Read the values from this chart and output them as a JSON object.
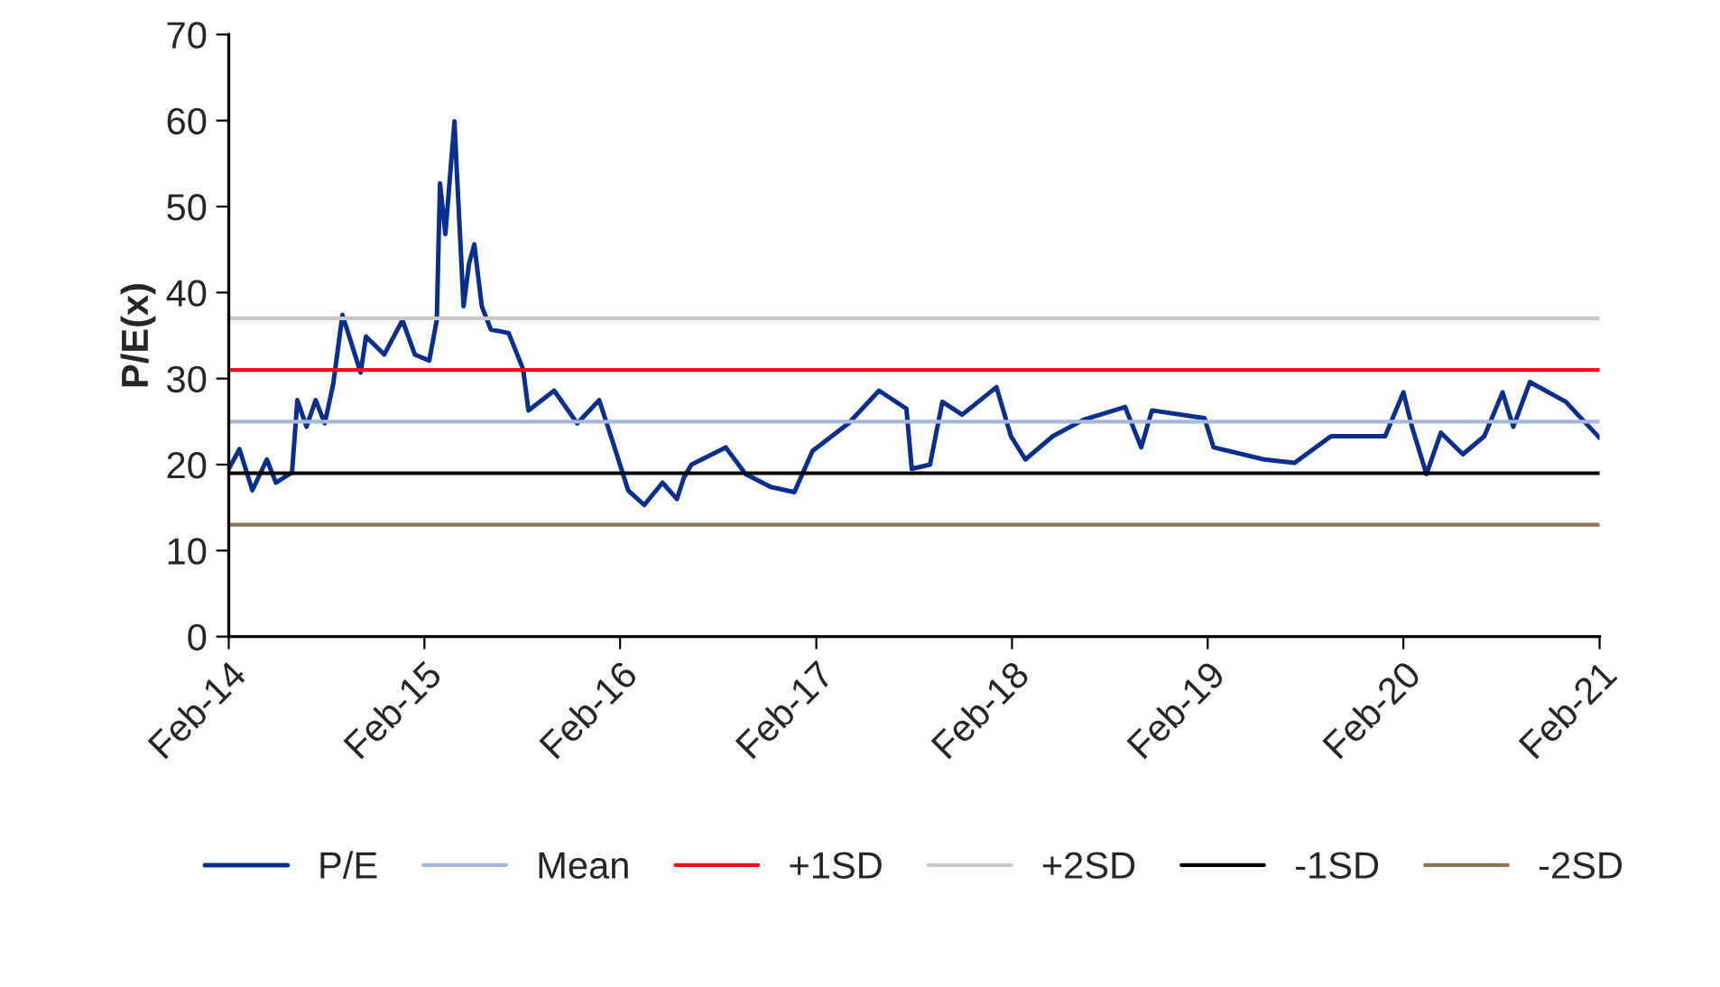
{
  "chart_data": {
    "type": "line",
    "ylabel": "P/E(x)",
    "xlim": [
      "2014-02-01",
      "2021-02-01"
    ],
    "xticks": [
      {
        "value": "2014-02-01",
        "label": "Feb-14"
      },
      {
        "value": "2015-02-01",
        "label": "Feb-15"
      },
      {
        "value": "2016-02-01",
        "label": "Feb-16"
      },
      {
        "value": "2017-02-01",
        "label": "Feb-17"
      },
      {
        "value": "2018-02-01",
        "label": "Feb-18"
      },
      {
        "value": "2019-02-01",
        "label": "Feb-19"
      },
      {
        "value": "2020-02-01",
        "label": "Feb-20"
      },
      {
        "value": "2021-02-01",
        "label": "Feb-21"
      }
    ],
    "ylim": [
      0,
      70
    ],
    "yticks": [
      0,
      10,
      20,
      30,
      40,
      50,
      60,
      70
    ],
    "grid": false,
    "legend": "bottom",
    "marker": "none",
    "line_style": "solid",
    "series": [
      {
        "name": "P/E",
        "color": "#0a2e8c",
        "x": [
          "2014-02-01",
          "2014-02-21",
          "2014-03-17",
          "2014-04-13",
          "2014-04-30",
          "2014-05-30",
          "2014-06-09",
          "2014-06-26",
          "2014-07-13",
          "2014-07-30",
          "2014-08-15",
          "2014-09-01",
          "2014-10-05",
          "2014-10-15",
          "2014-11-18",
          "2014-12-22",
          "2015-01-14",
          "2015-02-10",
          "2015-02-24",
          "2015-03-02",
          "2015-03-12",
          "2015-03-29",
          "2015-04-02",
          "2015-04-15",
          "2015-04-25",
          "2015-05-05",
          "2015-05-19",
          "2015-06-05",
          "2015-07-08",
          "2015-08-04",
          "2015-08-14",
          "2015-10-01",
          "2015-11-13",
          "2015-12-24",
          "2016-01-20",
          "2016-02-16",
          "2016-03-17",
          "2016-04-20",
          "2016-05-17",
          "2016-05-30",
          "2016-06-13",
          "2016-08-16",
          "2016-09-22",
          "2016-11-08",
          "2016-12-22",
          "2017-01-25",
          "2017-04-02",
          "2017-05-29",
          "2017-07-19",
          "2017-07-29",
          "2017-09-01",
          "2017-09-24",
          "2017-10-31",
          "2018-01-03",
          "2018-01-30",
          "2018-02-26",
          "2018-04-18",
          "2018-06-14",
          "2018-08-31",
          "2018-09-30",
          "2018-10-20",
          "2019-01-26",
          "2019-02-12",
          "2019-05-17",
          "2019-07-13",
          "2019-09-19",
          "2019-12-29",
          "2020-02-01",
          "2020-02-17",
          "2020-03-15",
          "2020-04-11",
          "2020-05-22",
          "2020-07-01",
          "2020-08-04",
          "2020-08-24",
          "2020-09-24",
          "2020-11-30",
          "2021-02-01"
        ],
        "values": [
          19.5,
          21.8,
          17,
          20.6,
          17.9,
          19.1,
          27.5,
          24.4,
          27.5,
          24.8,
          29.4,
          37.4,
          30.7,
          34.9,
          32.8,
          36.8,
          32.8,
          32.1,
          36.8,
          52.7,
          46.8,
          59.9,
          54.6,
          38.4,
          43.3,
          45.6,
          38.4,
          35.7,
          35.3,
          31.1,
          26.3,
          28.6,
          24.8,
          27.5,
          22.3,
          17,
          15.3,
          17.9,
          16,
          18.5,
          20,
          22,
          18.9,
          17.4,
          16.8,
          21.6,
          24.8,
          28.6,
          26.5,
          19.5,
          20,
          27.3,
          25.8,
          29,
          23.3,
          20.6,
          23.3,
          25.2,
          26.7,
          22,
          26.3,
          25.4,
          22,
          20.6,
          20.2,
          23.3,
          23.3,
          28.4,
          24.4,
          18.9,
          23.7,
          21.2,
          23.3,
          28.4,
          24.4,
          29.6,
          27.3,
          23.1
        ]
      },
      {
        "name": "Mean",
        "color": "#a6b8e0",
        "x": [
          "2014-02-01",
          "2021-02-01"
        ],
        "values": [
          25,
          25
        ]
      },
      {
        "name": "+1SD",
        "color": "#e8121c",
        "x": [
          "2014-02-01",
          "2021-02-01"
        ],
        "values": [
          31,
          31
        ]
      },
      {
        "name": "+2SD",
        "color": "#c8c8c8",
        "x": [
          "2014-02-01",
          "2021-02-01"
        ],
        "values": [
          37,
          37
        ]
      },
      {
        "name": "-1SD",
        "color": "#000000",
        "x": [
          "2014-02-01",
          "2021-02-01"
        ],
        "values": [
          19,
          19
        ]
      },
      {
        "name": "-2SD",
        "color": "#8c735a",
        "x": [
          "2014-02-01",
          "2021-02-01"
        ],
        "values": [
          13,
          13
        ]
      }
    ]
  }
}
